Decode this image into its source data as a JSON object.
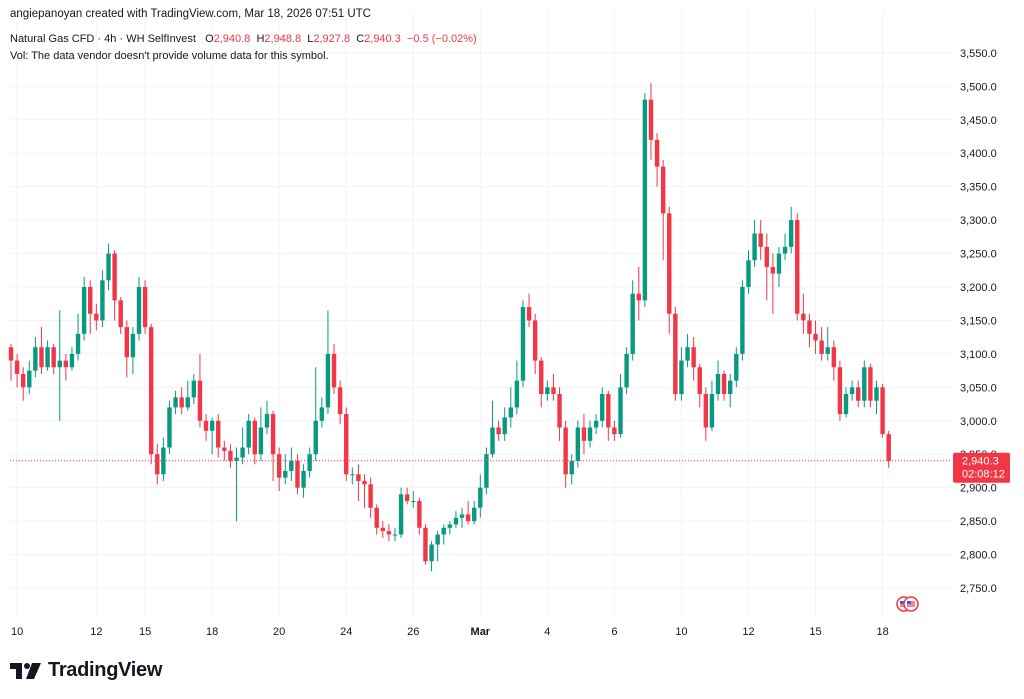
{
  "header": {
    "created_by": "angiepanoyan created with TradingView.com, Mar 18, 2026 07:51 UTC",
    "symbol": "Natural Gas CFD",
    "interval": "4h",
    "source": "WH SelfInvest",
    "ohlc": {
      "o_label": "O",
      "o_value": "2,940.8",
      "h_label": "H",
      "h_value": "2,948.8",
      "l_label": "L",
      "l_value": "2,927.8",
      "c_label": "C",
      "c_value": "2,940.3",
      "change": "−0.5 (−0.02%)"
    },
    "volume_note": "Vol: The data vendor doesn't provide volume data for this symbol."
  },
  "price_tag": {
    "price": "2,940.3",
    "countdown": "02:08:12"
  },
  "logo": {
    "text": "TradingView"
  },
  "colors": {
    "up": "#089981",
    "down": "#f23645",
    "grid": "#f0f3fa",
    "text": "#131722"
  },
  "chart_data": {
    "type": "candlestick",
    "title": "Natural Gas CFD · 4h · WH SelfInvest",
    "y_range": [
      2710,
      3580
    ],
    "y_ticks": [
      2750,
      2800,
      2850,
      2900,
      2950,
      3000,
      3050,
      3100,
      3150,
      3200,
      3250,
      3300,
      3350,
      3400,
      3450,
      3500,
      3550
    ],
    "y_tick_labels": [
      "2,750.0",
      "2,800.0",
      "2,850.0",
      "2,900.0",
      "2,950.0",
      "3,000.0",
      "3,050.0",
      "3,100.0",
      "3,150.0",
      "3,200.0",
      "3,250.0",
      "3,300.0",
      "3,350.0",
      "3,400.0",
      "3,450.0",
      "3,500.0",
      "3,550.0"
    ],
    "x_labels": [
      {
        "label": "10",
        "bar": 1
      },
      {
        "label": "12",
        "bar": 14
      },
      {
        "label": "15",
        "bar": 22
      },
      {
        "label": "18",
        "bar": 33
      },
      {
        "label": "20",
        "bar": 44
      },
      {
        "label": "24",
        "bar": 55
      },
      {
        "label": "26",
        "bar": 66
      },
      {
        "label": "Mar",
        "bar": 77,
        "bold": true
      },
      {
        "label": "4",
        "bar": 88
      },
      {
        "label": "6",
        "bar": 99
      },
      {
        "label": "10",
        "bar": 110
      },
      {
        "label": "12",
        "bar": 121
      },
      {
        "label": "15",
        "bar": 132
      },
      {
        "label": "18",
        "bar": 143
      }
    ],
    "last_price": 2940.3,
    "candles": [
      [
        3110,
        3090,
        3115,
        3060
      ],
      [
        3090,
        3070,
        3100,
        3050
      ],
      [
        3070,
        3050,
        3080,
        3030
      ],
      [
        3050,
        3075,
        3090,
        3040
      ],
      [
        3075,
        3110,
        3125,
        3065
      ],
      [
        3110,
        3080,
        3140,
        3070
      ],
      [
        3080,
        3110,
        3120,
        3075
      ],
      [
        3110,
        3080,
        3115,
        3070
      ],
      [
        3080,
        3090,
        3165,
        3000
      ],
      [
        3090,
        3080,
        3100,
        3060
      ],
      [
        3080,
        3100,
        3110,
        3075
      ],
      [
        3100,
        3130,
        3160,
        3090
      ],
      [
        3130,
        3200,
        3215,
        3120
      ],
      [
        3200,
        3160,
        3210,
        3130
      ],
      [
        3160,
        3150,
        3175,
        3135
      ],
      [
        3150,
        3210,
        3225,
        3140
      ],
      [
        3210,
        3250,
        3265,
        3195
      ],
      [
        3250,
        3180,
        3255,
        3150
      ],
      [
        3180,
        3140,
        3185,
        3130
      ],
      [
        3140,
        3095,
        3150,
        3065
      ],
      [
        3095,
        3130,
        3140,
        3070
      ],
      [
        3130,
        3200,
        3215,
        3120
      ],
      [
        3200,
        3140,
        3210,
        3130
      ],
      [
        3140,
        2950,
        3145,
        2935
      ],
      [
        2950,
        2920,
        2965,
        2905
      ],
      [
        2920,
        2960,
        2975,
        2910
      ],
      [
        2960,
        3020,
        3030,
        2950
      ],
      [
        3020,
        3035,
        3045,
        3010
      ],
      [
        3035,
        3020,
        3050,
        3010
      ],
      [
        3020,
        3035,
        3060,
        3015
      ],
      [
        3035,
        3060,
        3070,
        3025
      ],
      [
        3060,
        3000,
        3100,
        2990
      ],
      [
        3000,
        2985,
        3010,
        2970
      ],
      [
        2985,
        3000,
        3005,
        2950
      ],
      [
        3000,
        2960,
        3010,
        2945
      ],
      [
        2960,
        2955,
        2970,
        2940
      ],
      [
        2955,
        2940,
        2965,
        2930
      ],
      [
        2940,
        2945,
        2960,
        2850
      ],
      [
        2945,
        2960,
        2990,
        2935
      ],
      [
        2960,
        3000,
        3010,
        2950
      ],
      [
        3000,
        2950,
        3005,
        2935
      ],
      [
        2950,
        2990,
        3020,
        2940
      ],
      [
        2990,
        3010,
        3030,
        2980
      ],
      [
        3010,
        2950,
        3015,
        2910
      ],
      [
        2950,
        2915,
        2960,
        2895
      ],
      [
        2915,
        2925,
        2950,
        2905
      ],
      [
        2925,
        2940,
        2960,
        2910
      ],
      [
        2940,
        2900,
        2950,
        2890
      ],
      [
        2900,
        2925,
        2935,
        2885
      ],
      [
        2925,
        2950,
        2960,
        2915
      ],
      [
        2950,
        3000,
        3080,
        2940
      ],
      [
        3000,
        3020,
        3035,
        2990
      ],
      [
        3020,
        3100,
        3165,
        3010
      ],
      [
        3100,
        3050,
        3115,
        3040
      ],
      [
        3050,
        3010,
        3060,
        2995
      ],
      [
        3010,
        2920,
        3020,
        2910
      ],
      [
        2920,
        2920,
        2930,
        2905
      ],
      [
        2920,
        2910,
        2935,
        2880
      ],
      [
        2910,
        2905,
        2920,
        2870
      ],
      [
        2905,
        2870,
        2915,
        2855
      ],
      [
        2870,
        2840,
        2875,
        2830
      ],
      [
        2840,
        2835,
        2850,
        2825
      ],
      [
        2835,
        2830,
        2845,
        2820
      ],
      [
        2830,
        2830,
        2840,
        2820
      ],
      [
        2830,
        2890,
        2900,
        2825
      ],
      [
        2890,
        2880,
        2900,
        2875
      ],
      [
        2880,
        2880,
        2895,
        2870
      ],
      [
        2880,
        2840,
        2885,
        2830
      ],
      [
        2840,
        2790,
        2845,
        2785
      ],
      [
        2790,
        2815,
        2820,
        2775
      ],
      [
        2815,
        2830,
        2835,
        2790
      ],
      [
        2830,
        2840,
        2845,
        2815
      ],
      [
        2840,
        2845,
        2850,
        2830
      ],
      [
        2845,
        2855,
        2865,
        2840
      ],
      [
        2855,
        2860,
        2870,
        2840
      ],
      [
        2860,
        2850,
        2880,
        2845
      ],
      [
        2850,
        2870,
        2880,
        2845
      ],
      [
        2870,
        2900,
        2920,
        2855
      ],
      [
        2900,
        2950,
        2960,
        2890
      ],
      [
        2950,
        2990,
        3030,
        2945
      ],
      [
        2990,
        2980,
        3000,
        2970
      ],
      [
        2980,
        3005,
        3020,
        2970
      ],
      [
        3005,
        3020,
        3050,
        2990
      ],
      [
        3020,
        3060,
        3090,
        3010
      ],
      [
        3060,
        3170,
        3180,
        3050
      ],
      [
        3170,
        3150,
        3190,
        3140
      ],
      [
        3150,
        3090,
        3160,
        3070
      ],
      [
        3090,
        3040,
        3095,
        3020
      ],
      [
        3040,
        3050,
        3060,
        3030
      ],
      [
        3050,
        3040,
        3070,
        3030
      ],
      [
        3040,
        2990,
        3050,
        2970
      ],
      [
        2990,
        2920,
        3000,
        2900
      ],
      [
        2920,
        2940,
        2950,
        2905
      ],
      [
        2940,
        2990,
        3000,
        2930
      ],
      [
        2990,
        2970,
        3010,
        2950
      ],
      [
        2970,
        2990,
        3000,
        2960
      ],
      [
        2990,
        3000,
        3010,
        2980
      ],
      [
        3000,
        3040,
        3050,
        2990
      ],
      [
        3040,
        2990,
        3045,
        2970
      ],
      [
        2990,
        2980,
        3000,
        2970
      ],
      [
        2980,
        3050,
        3070,
        2975
      ],
      [
        3050,
        3100,
        3110,
        3040
      ],
      [
        3100,
        3190,
        3210,
        3090
      ],
      [
        3190,
        3180,
        3230,
        3150
      ],
      [
        3180,
        3480,
        3490,
        3170
      ],
      [
        3480,
        3420,
        3505,
        3390
      ],
      [
        3420,
        3380,
        3430,
        3350
      ],
      [
        3380,
        3310,
        3390,
        3240
      ],
      [
        3310,
        3160,
        3320,
        3130
      ],
      [
        3160,
        3040,
        3170,
        3030
      ],
      [
        3040,
        3090,
        3110,
        3030
      ],
      [
        3090,
        3110,
        3130,
        3080
      ],
      [
        3110,
        3080,
        3125,
        3060
      ],
      [
        3080,
        3040,
        3085,
        3020
      ],
      [
        3040,
        2990,
        3050,
        2970
      ],
      [
        2990,
        3040,
        3060,
        2985
      ],
      [
        3040,
        3070,
        3090,
        3030
      ],
      [
        3070,
        3040,
        3075,
        3030
      ],
      [
        3040,
        3060,
        3070,
        3020
      ],
      [
        3060,
        3100,
        3110,
        3050
      ],
      [
        3100,
        3200,
        3210,
        3090
      ],
      [
        3200,
        3240,
        3255,
        3190
      ],
      [
        3240,
        3280,
        3300,
        3230
      ],
      [
        3280,
        3260,
        3300,
        3240
      ],
      [
        3260,
        3230,
        3280,
        3180
      ],
      [
        3230,
        3220,
        3250,
        3160
      ],
      [
        3220,
        3250,
        3260,
        3200
      ],
      [
        3250,
        3260,
        3280,
        3240
      ],
      [
        3260,
        3300,
        3320,
        3250
      ],
      [
        3300,
        3160,
        3310,
        3150
      ],
      [
        3160,
        3150,
        3190,
        3130
      ],
      [
        3150,
        3130,
        3160,
        3110
      ],
      [
        3130,
        3120,
        3150,
        3100
      ],
      [
        3120,
        3100,
        3140,
        3090
      ],
      [
        3100,
        3110,
        3140,
        3090
      ],
      [
        3110,
        3080,
        3120,
        3060
      ],
      [
        3080,
        3010,
        3090,
        3000
      ],
      [
        3010,
        3040,
        3050,
        3005
      ],
      [
        3040,
        3050,
        3060,
        3030
      ],
      [
        3050,
        3030,
        3060,
        3020
      ],
      [
        3030,
        3080,
        3090,
        3020
      ],
      [
        3080,
        3030,
        3085,
        3020
      ],
      [
        3030,
        3050,
        3060,
        3010
      ],
      [
        3050,
        2980,
        3055,
        2975
      ],
      [
        2980,
        2940,
        2985,
        2930
      ]
    ]
  }
}
